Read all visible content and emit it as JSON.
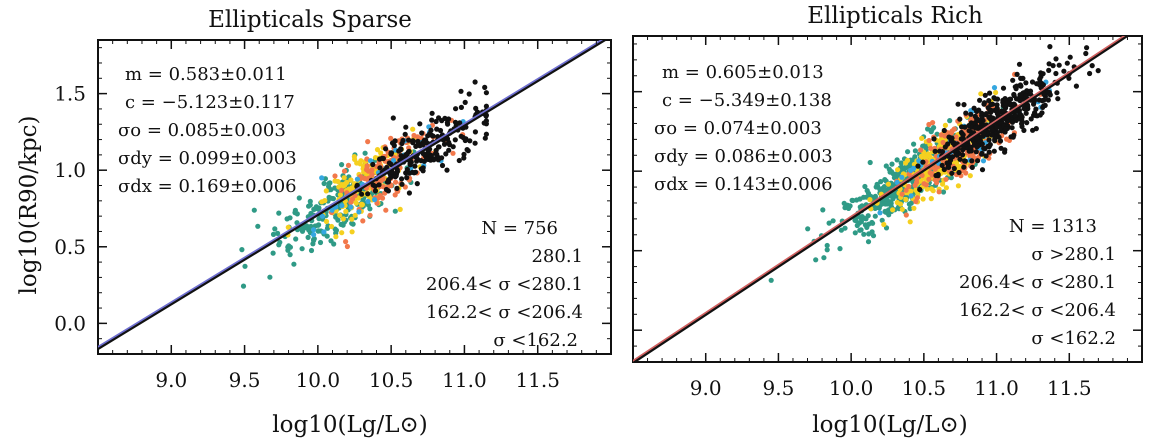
{
  "figure": {
    "ylabel": "log10(R90/kpc)",
    "xlabel": "log10(Lg/L⊙)"
  },
  "colors": {
    "high_sigma": "#111111",
    "mid_high_sigma": "#f2784b",
    "mid_low_sigma": "#f5d020",
    "low_sigma": "#2f9a86",
    "accent_blue": "#35a7e0",
    "fit_line": "#111111",
    "fit_line_alt_sparse": "#6f6fd0",
    "fit_line_alt_rich": "#d06060"
  },
  "chart_data": [
    {
      "type": "scatter",
      "title": "Ellipticals Sparse",
      "xlim": [
        8.5,
        12.0
      ],
      "ylim": [
        -0.2,
        1.85
      ],
      "xticks": [
        "9.0",
        "9.5",
        "10.0",
        "10.5",
        "11.0",
        "11.5"
      ],
      "yticks": [
        "0.0",
        "0.5",
        "1.0",
        "1.5"
      ],
      "grid": false,
      "fit": {
        "m": 0.583,
        "c": -5.123
      },
      "stats": [
        "m = 0.583±0.011",
        "c = −5.123±0.117",
        "σo = 0.085±0.003",
        "σdy = 0.099±0.003",
        "σdx = 0.169±0.006"
      ],
      "count": "N = 756",
      "legend": [
        "280.1",
        "206.4< σ <280.1",
        "162.2< σ <206.4",
        "σ <162.2"
      ],
      "legend_placement": "bottom-right",
      "cloud": {
        "n": 756,
        "x_mean": 10.42,
        "x_sd": 0.32,
        "x_min": 9.3,
        "x_max": 11.15,
        "scatter": 0.1,
        "seed": 7
      }
    },
    {
      "type": "scatter",
      "title": "Ellipticals Rich",
      "xlim": [
        8.5,
        12.0
      ],
      "ylim": [
        -0.2,
        1.85
      ],
      "xticks": [
        "9.0",
        "9.5",
        "10.0",
        "10.5",
        "11.0",
        "11.5"
      ],
      "yticks": [],
      "grid": false,
      "fit": {
        "m": 0.605,
        "c": -5.349
      },
      "stats": [
        "m = 0.605±0.013",
        "c = −5.349±0.138",
        "σo = 0.074±0.003",
        "σdy = 0.086±0.003",
        "σdx = 0.143±0.006"
      ],
      "count": "N = 1313",
      "legend": [
        "σ >280.1",
        "206.4< σ <280.1",
        "162.2< σ <206.4",
        "σ <162.2"
      ],
      "legend_placement": "bottom-right",
      "cloud": {
        "n": 1313,
        "x_mean": 10.7,
        "x_sd": 0.33,
        "x_min": 9.45,
        "x_max": 11.95,
        "scatter": 0.09,
        "seed": 19
      }
    }
  ]
}
